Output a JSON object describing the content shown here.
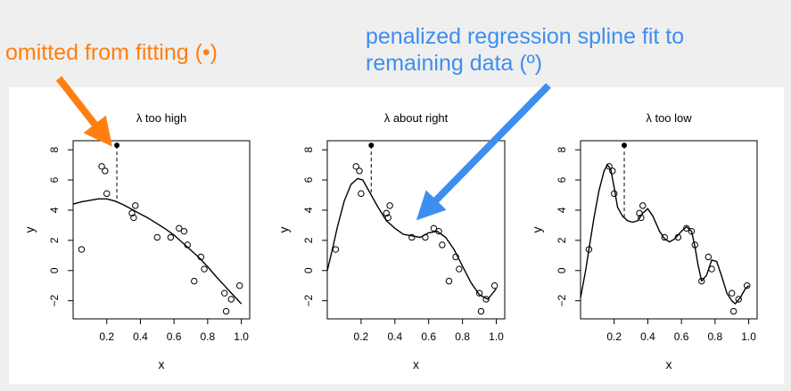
{
  "annotations": {
    "left": "omitted from fitting (•)",
    "right_line1": "penalized regression spline fit to",
    "right_line2": "remaining data (º)",
    "left_color": "#ff7f0e",
    "right_color": "#3d8ef0"
  },
  "chart_data": [
    {
      "type": "scatter",
      "title": "λ too high",
      "xlabel": "x",
      "ylabel": "y",
      "xlim": [
        0.0,
        1.05
      ],
      "ylim": [
        -3.2,
        8.6
      ],
      "xticks": [
        "0.2",
        "0.4",
        "0.6",
        "0.8",
        "1.0"
      ],
      "yticks": [
        "-2",
        "0",
        "2",
        "4",
        "6",
        "8"
      ],
      "grid": false,
      "points": {
        "x": [
          0.05,
          0.17,
          0.19,
          0.2,
          0.35,
          0.36,
          0.37,
          0.5,
          0.58,
          0.63,
          0.66,
          0.68,
          0.72,
          0.76,
          0.78,
          0.9,
          0.91,
          0.94,
          0.99
        ],
        "y": [
          1.4,
          6.9,
          6.6,
          5.1,
          3.8,
          3.5,
          4.3,
          2.2,
          2.2,
          2.8,
          2.6,
          1.7,
          -0.7,
          0.9,
          0.1,
          -1.5,
          -2.7,
          -1.9,
          -1.0
        ]
      },
      "omitted_point": {
        "x": 0.26,
        "y": 8.3
      },
      "fit_curve": {
        "x": [
          0.0,
          0.05,
          0.1,
          0.15,
          0.2,
          0.25,
          0.3,
          0.35,
          0.4,
          0.45,
          0.5,
          0.55,
          0.6,
          0.65,
          0.7,
          0.75,
          0.8,
          0.85,
          0.9,
          0.95,
          1.0
        ],
        "y": [
          4.4,
          4.55,
          4.65,
          4.75,
          4.75,
          4.6,
          4.35,
          4.05,
          3.75,
          3.45,
          3.1,
          2.75,
          2.35,
          1.85,
          1.35,
          0.85,
          0.25,
          -0.4,
          -1.0,
          -1.6,
          -2.2
        ]
      }
    },
    {
      "type": "scatter",
      "title": "λ about right",
      "xlabel": "x",
      "ylabel": "y",
      "xlim": [
        0.0,
        1.05
      ],
      "ylim": [
        -3.2,
        8.6
      ],
      "xticks": [
        "0.2",
        "0.4",
        "0.6",
        "0.8",
        "1.0"
      ],
      "yticks": [
        "-2",
        "0",
        "2",
        "4",
        "6",
        "8"
      ],
      "grid": false,
      "points": {
        "x": [
          0.05,
          0.17,
          0.19,
          0.2,
          0.35,
          0.36,
          0.37,
          0.5,
          0.58,
          0.63,
          0.66,
          0.68,
          0.72,
          0.76,
          0.78,
          0.9,
          0.91,
          0.94,
          0.99
        ],
        "y": [
          1.4,
          6.9,
          6.6,
          5.1,
          3.8,
          3.5,
          4.3,
          2.2,
          2.2,
          2.8,
          2.6,
          1.7,
          -0.7,
          0.9,
          0.1,
          -1.5,
          -2.7,
          -1.9,
          -1.0
        ]
      },
      "omitted_point": {
        "x": 0.26,
        "y": 8.3
      },
      "fit_curve": {
        "x": [
          0.0,
          0.03,
          0.06,
          0.1,
          0.14,
          0.18,
          0.21,
          0.25,
          0.3,
          0.35,
          0.4,
          0.45,
          0.5,
          0.55,
          0.6,
          0.65,
          0.7,
          0.75,
          0.8,
          0.85,
          0.9,
          0.95,
          1.0
        ],
        "y": [
          0.0,
          1.4,
          2.9,
          4.6,
          5.7,
          6.1,
          6.0,
          5.2,
          4.2,
          3.3,
          2.8,
          2.4,
          2.3,
          2.2,
          2.5,
          2.6,
          2.2,
          1.4,
          0.3,
          -0.8,
          -1.6,
          -1.9,
          -1.2
        ]
      }
    },
    {
      "type": "scatter",
      "title": "λ too low",
      "xlabel": "x",
      "ylabel": "y",
      "xlim": [
        0.0,
        1.05
      ],
      "ylim": [
        -3.2,
        8.6
      ],
      "xticks": [
        "0.2",
        "0.4",
        "0.6",
        "0.8",
        "1.0"
      ],
      "yticks": [
        "-2",
        "0",
        "2",
        "4",
        "6",
        "8"
      ],
      "grid": false,
      "points": {
        "x": [
          0.05,
          0.17,
          0.19,
          0.2,
          0.35,
          0.36,
          0.37,
          0.5,
          0.58,
          0.63,
          0.66,
          0.68,
          0.72,
          0.76,
          0.78,
          0.9,
          0.91,
          0.94,
          0.99
        ],
        "y": [
          1.4,
          6.9,
          6.6,
          5.1,
          3.8,
          3.5,
          4.3,
          2.2,
          2.2,
          2.8,
          2.6,
          1.7,
          -0.7,
          0.9,
          0.1,
          -1.5,
          -2.7,
          -1.9,
          -1.0
        ]
      },
      "omitted_point": {
        "x": 0.26,
        "y": 8.3
      },
      "fit_curve": {
        "x": [
          0.0,
          0.03,
          0.05,
          0.08,
          0.11,
          0.14,
          0.16,
          0.18,
          0.2,
          0.22,
          0.25,
          0.28,
          0.31,
          0.34,
          0.37,
          0.4,
          0.43,
          0.47,
          0.5,
          0.53,
          0.56,
          0.6,
          0.63,
          0.66,
          0.68,
          0.7,
          0.72,
          0.75,
          0.78,
          0.81,
          0.84,
          0.87,
          0.9,
          0.92,
          0.95,
          0.98,
          1.0
        ],
        "y": [
          -1.8,
          0.0,
          1.4,
          3.5,
          5.3,
          6.6,
          7.0,
          6.7,
          5.5,
          4.2,
          3.6,
          3.3,
          3.2,
          3.3,
          3.8,
          4.1,
          3.6,
          2.6,
          2.1,
          1.9,
          2.1,
          2.6,
          2.9,
          2.6,
          1.6,
          0.3,
          -0.7,
          -0.3,
          0.7,
          0.6,
          -0.4,
          -1.5,
          -2.0,
          -2.2,
          -1.8,
          -1.2,
          -1.0
        ]
      }
    }
  ]
}
